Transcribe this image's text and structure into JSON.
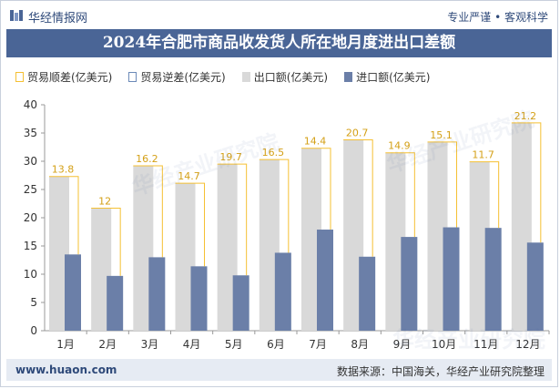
{
  "header": {
    "brand": "华经情报网",
    "tagline": "专业严谨 • 客观科学"
  },
  "colors": {
    "title_bg": "#4a6596",
    "export": "#d9d9d9",
    "import": "#6b7fa8",
    "surplus": "#f5c033",
    "deficit": "#6c8ab8",
    "footer_bg": "#e6ebf3"
  },
  "chart_data": {
    "type": "bar",
    "title": "2024年合肥市商品收发货人所在地月度进出口差额",
    "categories": [
      "1月",
      "2月",
      "3月",
      "4月",
      "5月",
      "6月",
      "7月",
      "8月",
      "9月",
      "10月",
      "11月",
      "12月"
    ],
    "series": [
      {
        "name": "贸易顺差(亿美元)",
        "values": [
          13.8,
          12,
          16.2,
          14.7,
          19.7,
          16.5,
          14.4,
          20.7,
          14.9,
          15.1,
          11.7,
          21.2
        ]
      },
      {
        "name": "贸易逆差(亿美元)",
        "values": [
          0,
          0,
          0,
          0,
          0,
          0,
          0,
          0,
          0,
          0,
          0,
          0
        ]
      },
      {
        "name": "出口额(亿美元)",
        "values": [
          27.3,
          21.7,
          29.2,
          26.1,
          29.5,
          30.3,
          32.3,
          33.8,
          31.5,
          33.4,
          29.9,
          36.8
        ]
      },
      {
        "name": "进口额(亿美元)",
        "values": [
          13.5,
          9.7,
          13.0,
          11.4,
          9.8,
          13.8,
          17.9,
          13.1,
          16.6,
          18.3,
          18.2,
          15.6
        ]
      }
    ],
    "data_labels": [
      "13.8",
      "12",
      "16.2",
      "14.7",
      "19.7",
      "16.5",
      "14.4",
      "20.7",
      "14.9",
      "15.1",
      "11.7",
      "21.2"
    ],
    "ylim": [
      0,
      40
    ],
    "yticks": [
      0,
      5,
      10,
      15,
      20,
      25,
      30,
      35,
      40
    ],
    "legend_position": "top-left"
  },
  "footer": {
    "website": "www.huaon.com",
    "source": "数据来源：中国海关，华经产业研究院整理"
  },
  "watermark": "华经产业研究院"
}
